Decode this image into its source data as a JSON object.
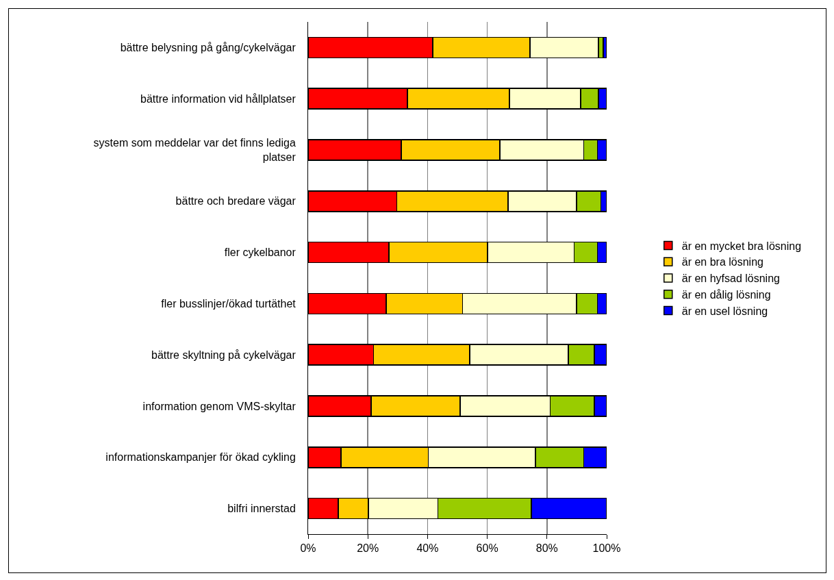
{
  "chart_data": {
    "type": "bar",
    "orientation": "horizontal",
    "stacked": true,
    "categories": [
      "bättre belysning på gång/cykelvägar",
      "bättre information vid hållplatser",
      "system som meddelar var det finns lediga platser",
      "bättre och bredare vägar",
      "fler cykelbanor",
      "fler busslinjer/ökad turtäthet",
      "bättre skyltning på cykelvägar",
      "information genom VMS-skyltar",
      "informationskampanjer för ökad cykling",
      "bilfri innerstad"
    ],
    "series": [
      {
        "name": "är en mycket bra lösning",
        "color": "#ff0000",
        "values": [
          41.7,
          33.3,
          31.2,
          29.7,
          27.1,
          26.1,
          21.9,
          21.1,
          11.0,
          10.1
        ]
      },
      {
        "name": "är en bra lösning",
        "color": "#ffcc00",
        "values": [
          32.6,
          34.1,
          33.0,
          37.3,
          33.0,
          25.6,
          32.2,
          29.8,
          29.2,
          10.1
        ]
      },
      {
        "name": "är en hyfsad lösning",
        "color": "#ffffcc",
        "values": [
          22.9,
          23.9,
          28.1,
          22.9,
          29.0,
          38.2,
          33.1,
          30.2,
          35.9,
          23.3
        ]
      },
      {
        "name": "är en dålig lösning",
        "color": "#99cc00",
        "values": [
          1.7,
          5.9,
          4.6,
          8.1,
          7.8,
          7.0,
          8.7,
          14.8,
          16.2,
          31.3
        ]
      },
      {
        "name": "är en usel lösning",
        "color": "#0000ff",
        "values": [
          1.1,
          2.8,
          3.1,
          2.0,
          3.1,
          3.1,
          4.1,
          4.1,
          7.7,
          25.2
        ]
      }
    ],
    "xlim": [
      0,
      100
    ],
    "xticks": [
      {
        "value": 0,
        "label": "0%"
      },
      {
        "value": 20,
        "label": "20%"
      },
      {
        "value": 40,
        "label": "40%"
      },
      {
        "value": 60,
        "label": "60%"
      },
      {
        "value": 80,
        "label": "80%"
      },
      {
        "value": 100,
        "label": "100%"
      }
    ],
    "grid": "x",
    "legend": "right"
  }
}
